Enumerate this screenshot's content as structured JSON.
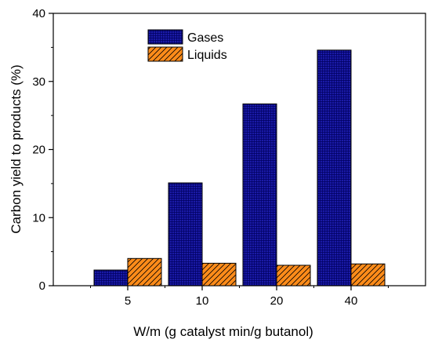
{
  "chart_data": {
    "type": "bar",
    "title": "",
    "xlabel": "W/m (g catalyst min/g butanol)",
    "ylabel": "Carbon yield to products (%)",
    "categories": [
      "5",
      "10",
      "20",
      "40"
    ],
    "ylim": [
      0,
      40
    ],
    "yticks": [
      0,
      10,
      20,
      30,
      40
    ],
    "grid": false,
    "legend_position": "top-center",
    "series": [
      {
        "name": "Gases",
        "values": [
          2.3,
          15.1,
          26.7,
          34.6
        ],
        "color": "#1a1aa6",
        "pattern": "crosshatch"
      },
      {
        "name": "Liquids",
        "values": [
          4.0,
          3.3,
          3.0,
          3.2
        ],
        "color": "#ff8c1a",
        "pattern": "diagonal"
      }
    ]
  }
}
